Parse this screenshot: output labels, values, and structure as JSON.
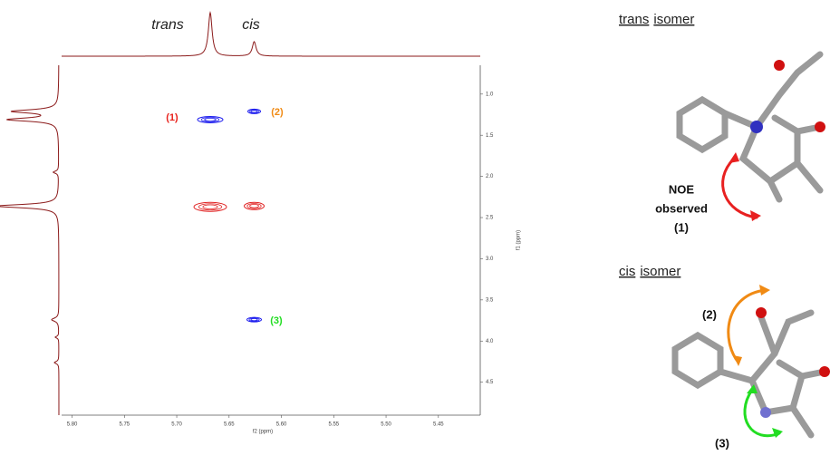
{
  "chart_data": {
    "type": "scatter",
    "xlabel": "f2 (ppm)",
    "ylabel": "f1 (ppm)",
    "xlim": [
      5.81,
      5.41
    ],
    "ylim": [
      0.65,
      4.9
    ],
    "xticks": [
      {
        "value": 5.8,
        "label": "5.80"
      },
      5.75,
      {
        "value": 5.7,
        "label": "5.70"
      },
      5.65,
      {
        "value": 5.6,
        "label": "5.60"
      },
      5.55,
      {
        "value": 5.5,
        "label": "5.50"
      },
      5.45
    ],
    "yticks": [
      {
        "value": 1,
        "label": "1.0"
      },
      1.5,
      {
        "value": 2,
        "label": "2.0"
      },
      2.5,
      {
        "value": 3,
        "label": "3.0"
      },
      3.5,
      {
        "value": 4,
        "label": "4.0"
      },
      4.5
    ],
    "series": [
      {
        "color": "#1a1aee",
        "x": [
          5.668,
          5.626,
          5.626
        ],
        "values": [
          1.31,
          1.21,
          3.74
        ]
      },
      {
        "color": "#e02020",
        "x": [
          5.668,
          5.626
        ],
        "values": [
          2.37,
          2.36
        ]
      }
    ],
    "annotations": [
      {
        "text": "trans",
        "color": "#222222"
      },
      {
        "text": "cis",
        "color": "#222222"
      },
      {
        "text": "(1)",
        "color": "#e8201a"
      },
      {
        "text": "(2)",
        "color": "#f08a14"
      },
      {
        "text": "(3)",
        "color": "#22dd22"
      }
    ]
  },
  "molecules": [
    {
      "title": [
        "trans",
        "isomer"
      ],
      "note": [
        "NOE",
        "observed",
        "(1)"
      ]
    },
    {
      "title": [
        "cis",
        "isomer"
      ],
      "note": [
        "(2)",
        "(3)"
      ]
    }
  ]
}
